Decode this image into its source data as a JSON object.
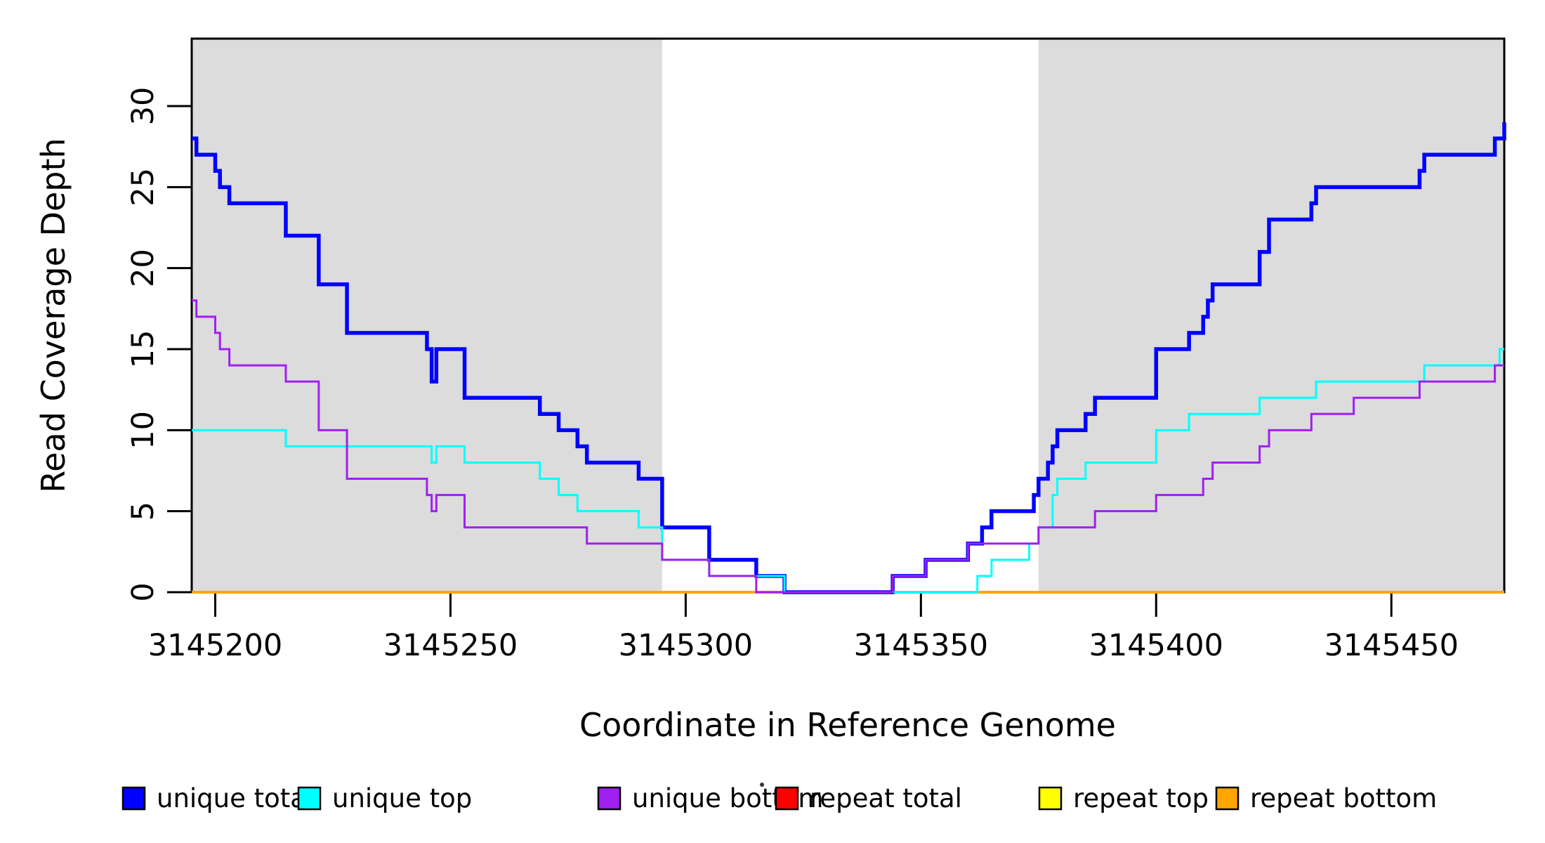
{
  "figure": {
    "xlabel": "Coordinate in Reference Genome",
    "ylabel": "Read Coverage Depth"
  },
  "chart_data": {
    "type": "line",
    "subtype": "step-after",
    "title": "",
    "xlabel": "Coordinate in Reference Genome",
    "ylabel": "Read Coverage Depth",
    "xlim": [
      3145195,
      3145474
    ],
    "ylim": [
      0,
      34.2
    ],
    "x_ticks": [
      3145200,
      3145250,
      3145300,
      3145350,
      3145400,
      3145450
    ],
    "y_ticks": [
      0,
      5,
      10,
      15,
      20,
      25,
      30
    ],
    "grid": false,
    "background_regions": [
      {
        "name": "left-shaded-region",
        "x0": 3145195,
        "x1": 3145295,
        "color": "#DCDCDC"
      },
      {
        "name": "right-shaded-region",
        "x0": 3145375,
        "x1": 3145474,
        "color": "#DCDCDC"
      }
    ],
    "series": [
      {
        "name": "repeat total",
        "color": "#FF0000",
        "width": 3,
        "points": [
          [
            3145195,
            0
          ]
        ]
      },
      {
        "name": "repeat top",
        "color": "#FFFF00",
        "width": 3,
        "points": [
          [
            3145195,
            0
          ]
        ]
      },
      {
        "name": "repeat bottom",
        "color": "#FFA500",
        "width": 4,
        "points": [
          [
            3145195,
            0
          ]
        ]
      },
      {
        "name": "unique total",
        "color": "#0000FF",
        "width": 5.5,
        "points": [
          [
            3145195,
            28
          ],
          [
            3145196,
            27
          ],
          [
            3145200,
            26
          ],
          [
            3145201,
            25
          ],
          [
            3145203,
            24
          ],
          [
            3145215,
            22
          ],
          [
            3145222,
            19
          ],
          [
            3145228,
            16
          ],
          [
            3145245,
            15
          ],
          [
            3145246,
            13
          ],
          [
            3145247,
            15
          ],
          [
            3145253,
            12
          ],
          [
            3145269,
            11
          ],
          [
            3145273,
            10
          ],
          [
            3145277,
            9
          ],
          [
            3145279,
            8
          ],
          [
            3145290,
            7
          ],
          [
            3145295,
            4
          ],
          [
            3145305,
            2
          ],
          [
            3145315,
            1
          ],
          [
            3145321,
            0
          ],
          [
            3145344,
            1
          ],
          [
            3145351,
            2
          ],
          [
            3145360,
            3
          ],
          [
            3145363,
            4
          ],
          [
            3145365,
            5
          ],
          [
            3145374,
            6
          ],
          [
            3145375,
            7
          ],
          [
            3145377,
            8
          ],
          [
            3145378,
            9
          ],
          [
            3145379,
            10
          ],
          [
            3145385,
            11
          ],
          [
            3145387,
            12
          ],
          [
            3145400,
            15
          ],
          [
            3145407,
            16
          ],
          [
            3145410,
            17
          ],
          [
            3145411,
            18
          ],
          [
            3145412,
            19
          ],
          [
            3145422,
            21
          ],
          [
            3145424,
            23
          ],
          [
            3145433,
            24
          ],
          [
            3145434,
            25
          ],
          [
            3145456,
            26
          ],
          [
            3145457,
            27
          ],
          [
            3145472,
            28
          ],
          [
            3145474,
            29
          ]
        ]
      },
      {
        "name": "unique top",
        "color": "#00FFFF",
        "width": 3,
        "points": [
          [
            3145195,
            10
          ],
          [
            3145215,
            9
          ],
          [
            3145246,
            8
          ],
          [
            3145247,
            9
          ],
          [
            3145253,
            8
          ],
          [
            3145269,
            7
          ],
          [
            3145273,
            6
          ],
          [
            3145277,
            5
          ],
          [
            3145290,
            4
          ],
          [
            3145295,
            2
          ],
          [
            3145305,
            1
          ],
          [
            3145321,
            0
          ],
          [
            3145362,
            1
          ],
          [
            3145365,
            2
          ],
          [
            3145373,
            3
          ],
          [
            3145375,
            4
          ],
          [
            3145378,
            6
          ],
          [
            3145379,
            7
          ],
          [
            3145385,
            8
          ],
          [
            3145400,
            10
          ],
          [
            3145407,
            11
          ],
          [
            3145422,
            12
          ],
          [
            3145434,
            13
          ],
          [
            3145457,
            14
          ],
          [
            3145473,
            15
          ]
        ]
      },
      {
        "name": "unique bottom",
        "color": "#A020F0",
        "width": 3,
        "points": [
          [
            3145195,
            18
          ],
          [
            3145196,
            17
          ],
          [
            3145200,
            16
          ],
          [
            3145201,
            15
          ],
          [
            3145203,
            14
          ],
          [
            3145215,
            13
          ],
          [
            3145222,
            10
          ],
          [
            3145228,
            7
          ],
          [
            3145245,
            6
          ],
          [
            3145246,
            5
          ],
          [
            3145247,
            6
          ],
          [
            3145253,
            4
          ],
          [
            3145279,
            3
          ],
          [
            3145295,
            2
          ],
          [
            3145305,
            1
          ],
          [
            3145315,
            0
          ],
          [
            3145344,
            1
          ],
          [
            3145351,
            2
          ],
          [
            3145360,
            3
          ],
          [
            3145375,
            4
          ],
          [
            3145387,
            5
          ],
          [
            3145400,
            6
          ],
          [
            3145410,
            7
          ],
          [
            3145412,
            8
          ],
          [
            3145422,
            9
          ],
          [
            3145424,
            10
          ],
          [
            3145433,
            11
          ],
          [
            3145442,
            12
          ],
          [
            3145456,
            13
          ],
          [
            3145472,
            14
          ]
        ]
      }
    ],
    "legend": [
      {
        "label": "unique total",
        "color": "#0000FF"
      },
      {
        "label": "unique top",
        "color": "#00FFFF"
      },
      {
        "label": "unique bottom",
        "color": "#A020F0"
      },
      {
        "label": "repeat total",
        "color": "#FF0000"
      },
      {
        "label": "repeat top",
        "color": "#FFFF00"
      },
      {
        "label": "repeat bottom",
        "color": "#FFA500"
      }
    ],
    "legend_position": "bottom"
  }
}
